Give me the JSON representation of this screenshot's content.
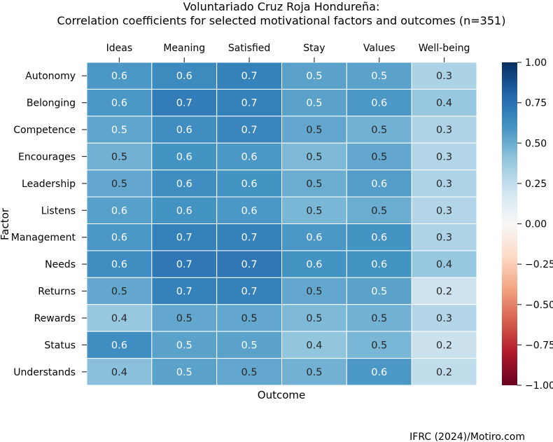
{
  "chart_data": {
    "type": "heatmap",
    "title_line1": "Voluntariado Cruz Roja Hondureña:",
    "title_line2": "Correlation coefficients for selected motivational factors and outcomes (n=351)",
    "xlabel": "Outcome",
    "ylabel": "Factor",
    "columns": [
      "Ideas",
      "Meaning",
      "Satisfied",
      "Stay",
      "Values",
      "Well-being"
    ],
    "rows": [
      "Autonomy",
      "Belonging",
      "Competence",
      "Encourages",
      "Leadership",
      "Listens",
      "Management",
      "Needs",
      "Returns",
      "Rewards",
      "Status",
      "Understands"
    ],
    "values": [
      [
        0.58,
        0.64,
        0.68,
        0.54,
        0.54,
        0.32
      ],
      [
        0.58,
        0.7,
        0.68,
        0.54,
        0.58,
        0.38
      ],
      [
        0.53,
        0.62,
        0.66,
        0.52,
        0.48,
        0.31
      ],
      [
        0.48,
        0.6,
        0.58,
        0.45,
        0.52,
        0.3
      ],
      [
        0.52,
        0.62,
        0.6,
        0.5,
        0.56,
        0.31
      ],
      [
        0.55,
        0.6,
        0.58,
        0.46,
        0.5,
        0.3
      ],
      [
        0.58,
        0.68,
        0.68,
        0.58,
        0.6,
        0.31
      ],
      [
        0.62,
        0.72,
        0.72,
        0.6,
        0.6,
        0.38
      ],
      [
        0.52,
        0.68,
        0.68,
        0.52,
        0.54,
        0.21
      ],
      [
        0.38,
        0.52,
        0.52,
        0.45,
        0.48,
        0.3
      ],
      [
        0.62,
        0.54,
        0.54,
        0.4,
        0.46,
        0.22
      ],
      [
        0.42,
        0.54,
        0.52,
        0.48,
        0.58,
        0.25
      ]
    ],
    "labels": [
      [
        "0.6",
        "0.6",
        "0.7",
        "0.5",
        "0.5",
        "0.3"
      ],
      [
        "0.6",
        "0.7",
        "0.7",
        "0.5",
        "0.6",
        "0.4"
      ],
      [
        "0.5",
        "0.6",
        "0.7",
        "0.5",
        "0.5",
        "0.3"
      ],
      [
        "0.5",
        "0.6",
        "0.6",
        "0.5",
        "0.5",
        "0.3"
      ],
      [
        "0.5",
        "0.6",
        "0.6",
        "0.5",
        "0.6",
        "0.3"
      ],
      [
        "0.6",
        "0.6",
        "0.6",
        "0.5",
        "0.5",
        "0.3"
      ],
      [
        "0.6",
        "0.7",
        "0.7",
        "0.6",
        "0.6",
        "0.3"
      ],
      [
        "0.6",
        "0.7",
        "0.7",
        "0.6",
        "0.6",
        "0.4"
      ],
      [
        "0.5",
        "0.7",
        "0.7",
        "0.5",
        "0.5",
        "0.2"
      ],
      [
        "0.4",
        "0.5",
        "0.5",
        "0.5",
        "0.5",
        "0.3"
      ],
      [
        "0.6",
        "0.5",
        "0.5",
        "0.4",
        "0.5",
        "0.2"
      ],
      [
        "0.4",
        "0.5",
        "0.5",
        "0.5",
        "0.6",
        "0.2"
      ]
    ],
    "colorbar": {
      "range": [
        -1.0,
        1.0
      ],
      "ticks": [
        1.0,
        0.75,
        0.5,
        0.25,
        0.0,
        -0.25,
        -0.5,
        -0.75,
        -1.0
      ],
      "tick_labels": [
        "1.00",
        "0.75",
        "0.50",
        "0.25",
        "0.00",
        "−0.25",
        "−0.50",
        "−0.75",
        "−1.00"
      ],
      "colormap": "RdBu",
      "stops": [
        "#67001f",
        "#b2182b",
        "#d6604d",
        "#f4a582",
        "#fddbc7",
        "#f7f7f7",
        "#d1e5f0",
        "#92c5de",
        "#4393c3",
        "#2166ac",
        "#053061"
      ]
    },
    "grid": false
  },
  "source": "IFRC (2024)/Motiro.com"
}
